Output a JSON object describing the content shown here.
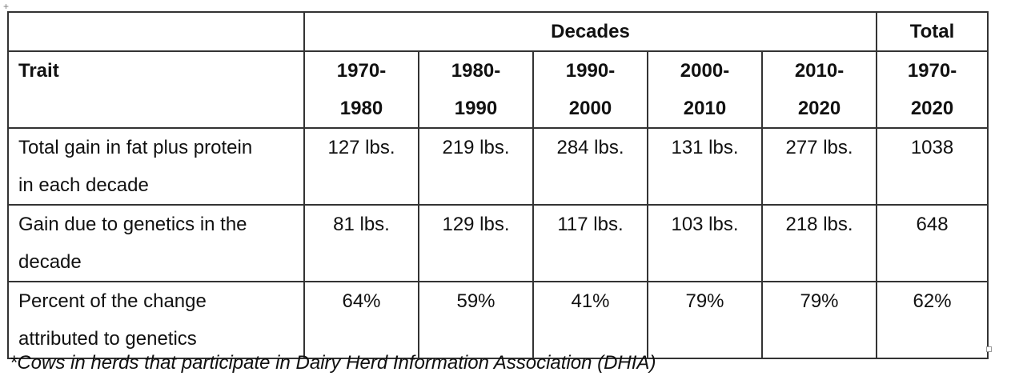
{
  "header": {
    "decades_label": "Decades",
    "total_label": "Total",
    "trait_label": "Trait",
    "years": [
      {
        "start": "1970-",
        "end": "1980"
      },
      {
        "start": "1980-",
        "end": "1990"
      },
      {
        "start": "1990-",
        "end": "2000"
      },
      {
        "start": "2000-",
        "end": "2010"
      },
      {
        "start": "2010-",
        "end": "2020"
      }
    ],
    "total_range": {
      "start": "1970-",
      "end": "2020"
    }
  },
  "rows": [
    {
      "trait": [
        "Total gain in fat plus protein",
        "in each decade"
      ],
      "values": [
        "127 lbs.",
        "219 lbs.",
        "284 lbs.",
        "131 lbs.",
        "277 lbs."
      ],
      "total": "1038"
    },
    {
      "trait": [
        "Gain due to genetics in the",
        "decade"
      ],
      "values": [
        "81 lbs.",
        "129 lbs.",
        "117 lbs.",
        "103 lbs.",
        "218 lbs."
      ],
      "total": "648"
    },
    {
      "trait": [
        "Percent of the change",
        "attributed to genetics"
      ],
      "values": [
        "64%",
        "59%",
        "41%",
        "79%",
        "79%"
      ],
      "total": "62%"
    }
  ],
  "footnote": "*Cows in herds that participate in Dairy Herd Information Association (DHIA)"
}
